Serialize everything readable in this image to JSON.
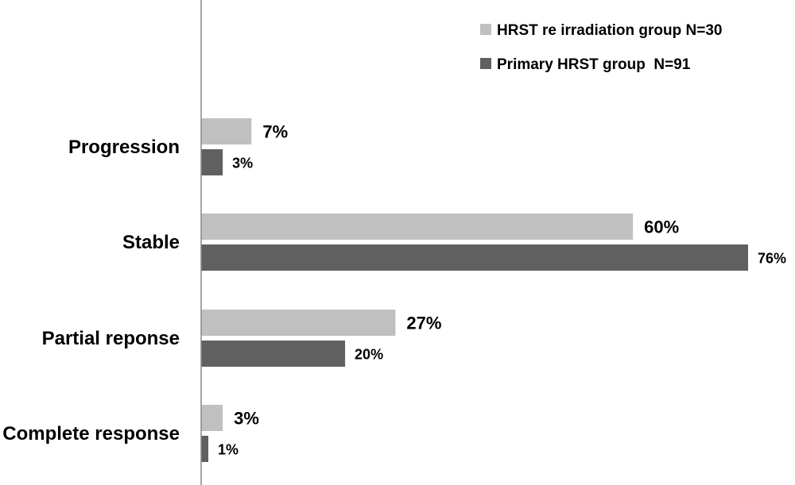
{
  "chart_data": {
    "type": "bar",
    "orientation": "horizontal",
    "categories": [
      "Progression",
      "Stable",
      "Partial reponse",
      "Complete response"
    ],
    "series": [
      {
        "name": "HRST re irradiation group N=30",
        "values": [
          7,
          60,
          27,
          3
        ],
        "labels": [
          "7%",
          "60%",
          "27%",
          "3%"
        ],
        "color": "#c0c0c0"
      },
      {
        "name": "Primary HRST group  N=91",
        "values": [
          3,
          76,
          20,
          1
        ],
        "labels": [
          "3%",
          "76%",
          "20%",
          "1%"
        ],
        "color": "#606060"
      }
    ],
    "xlim": [
      0,
      76
    ],
    "grid": false,
    "legend_position": "top-right",
    "axis_color": "#888888"
  }
}
